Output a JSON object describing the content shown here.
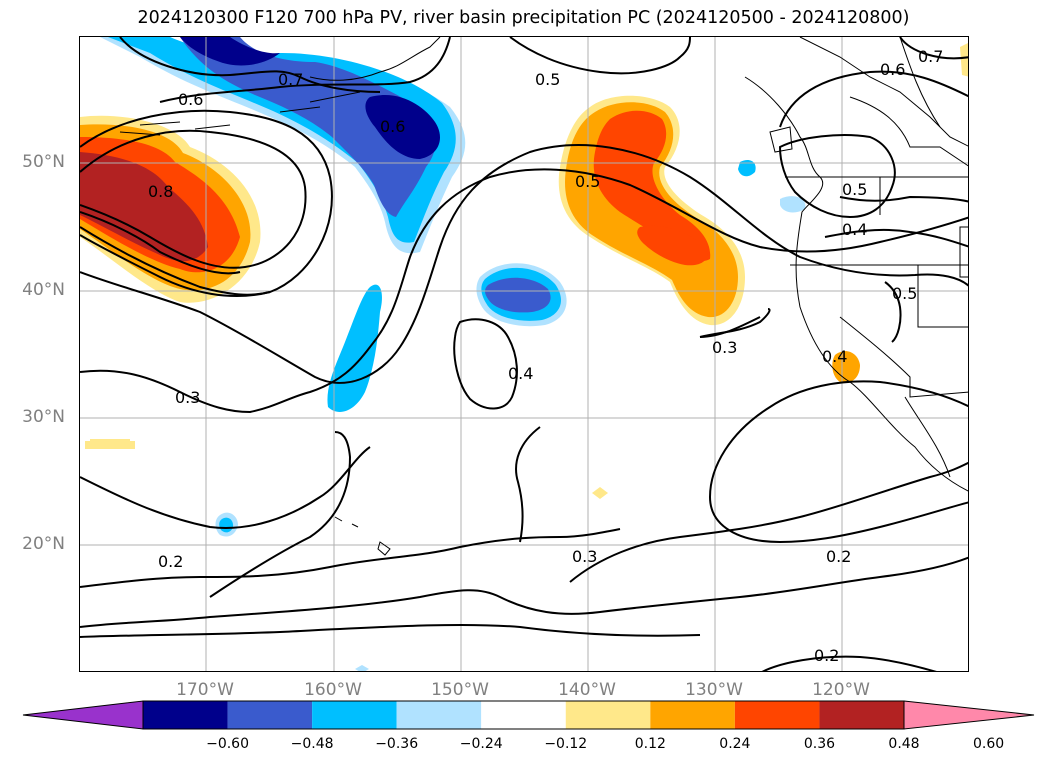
{
  "title": "2024120300 F120 700 hPa PV, river basin precipitation PC (2024120500 - 2024120800)",
  "lat_labels": [
    "50°N",
    "40°N",
    "30°N",
    "20°N"
  ],
  "lon_labels": [
    "170°W",
    "160°W",
    "150°W",
    "140°W",
    "130°W",
    "120°W"
  ],
  "contour_labels": [
    "0.7",
    "0.5",
    "0.6",
    "0.7",
    "0.6",
    "0.8",
    "0.6",
    "0.5",
    "0.5",
    "0.4",
    "0.5",
    "0.3",
    "0.4",
    "0.4",
    "0.3",
    "0.2",
    "0.3",
    "0.2",
    "0.2"
  ],
  "colorbar": {
    "ticks": [
      "−0.60",
      "−0.48",
      "−0.36",
      "−0.24",
      "−0.12",
      "0.12",
      "0.24",
      "0.36",
      "0.48",
      "0.60"
    ],
    "colors": [
      "#9932cc",
      "#00008b",
      "#3a5bcd",
      "#00bfff",
      "#b0e2ff",
      "#ffffff",
      "#ffe88a",
      "#ffa500",
      "#ff4500",
      "#b22222",
      "#ff88aa"
    ]
  },
  "colors": {
    "negative_1": "#b0e2ff",
    "negative_2": "#00bfff",
    "negative_3": "#3a5bcd",
    "negative_4": "#00008b",
    "positive_1": "#ffe88a",
    "positive_2": "#ffa500",
    "positive_3": "#ff4500",
    "positive_4": "#b22222",
    "grid": "#b0b0b0",
    "label_gray": "#808080"
  }
}
